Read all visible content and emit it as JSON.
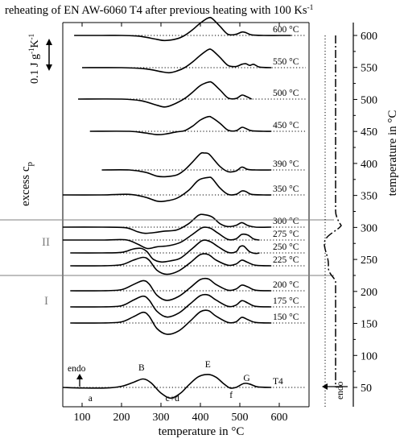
{
  "chart_data": {
    "type": "line",
    "title": "reheating of EN AW-6060 T4 after previous heating with 100 Ks",
    "title_superscript": "-1",
    "xlabel": "temperature in °C",
    "ylabel_left": "excess c",
    "ylabel_left_subscript": "p",
    "ylabel_right": "temperature in °C",
    "scale_bar_label": "0.1 J g",
    "scale_bar_sup1": "-1",
    "scale_bar_mid": "K",
    "scale_bar_sup2": "-1",
    "xlim": [
      50,
      650
    ],
    "x_ticks": [
      "100",
      "200",
      "300",
      "400",
      "500",
      "600"
    ],
    "right_axis_lim": [
      25,
      625
    ],
    "right_axis_ticks": [
      "50",
      "100",
      "150",
      "200",
      "250",
      "300",
      "350",
      "400",
      "450",
      "500",
      "550",
      "600"
    ],
    "series": [
      {
        "name": "600 °C",
        "baseline": 600,
        "x_start": 80,
        "x_end": 630,
        "x": [
          80,
          150,
          200,
          240,
          260,
          290,
          310,
          340,
          360,
          380,
          400,
          420,
          430,
          450,
          470,
          490,
          505,
          515,
          530,
          560,
          600,
          630
        ],
        "y": [
          0,
          0,
          0,
          -0.05,
          -0.15,
          -0.35,
          -0.45,
          -0.3,
          0,
          0.5,
          1.1,
          1.55,
          1.5,
          0.8,
          0.1,
          0.1,
          0.3,
          0.25,
          0.05,
          0,
          0,
          0
        ]
      },
      {
        "name": "550 °C",
        "baseline": 550,
        "x_start": 100,
        "x_end": 580,
        "x": [
          100,
          200,
          260,
          300,
          320,
          340,
          360,
          380,
          400,
          420,
          430,
          450,
          470,
          490,
          505,
          515,
          525,
          535,
          550,
          580
        ],
        "y": [
          0,
          0,
          -0.1,
          -0.35,
          -0.45,
          -0.3,
          0,
          0.5,
          1.1,
          1.6,
          1.55,
          0.9,
          0.2,
          0.1,
          0.3,
          0.35,
          0.2,
          0.3,
          0.05,
          0
        ]
      },
      {
        "name": "500 °C",
        "baseline": 500,
        "x_start": 90,
        "x_end": 530,
        "x": [
          90,
          200,
          250,
          290,
          310,
          330,
          360,
          380,
          400,
          420,
          430,
          450,
          470,
          490,
          505,
          515,
          530
        ],
        "y": [
          0,
          0,
          -0.15,
          -0.55,
          -0.7,
          -0.5,
          0.05,
          0.6,
          1.2,
          1.5,
          1.45,
          0.8,
          0.1,
          0.05,
          0.35,
          0.25,
          0
        ]
      },
      {
        "name": "450 °C",
        "baseline": 450,
        "x_start": 120,
        "x_end": 580,
        "x": [
          120,
          220,
          260,
          290,
          310,
          340,
          360,
          380,
          400,
          420,
          430,
          450,
          470,
          490,
          505,
          515,
          530,
          560,
          580
        ],
        "y": [
          0,
          0,
          -0.15,
          -0.3,
          -0.25,
          -0.05,
          0.05,
          0.45,
          1.0,
          1.3,
          1.2,
          0.7,
          0.1,
          0.05,
          0.35,
          0.25,
          0.05,
          0,
          0
        ]
      },
      {
        "name": "390 °C",
        "baseline": 390,
        "x_start": 150,
        "x_end": 580,
        "x": [
          150,
          220,
          260,
          290,
          310,
          340,
          360,
          380,
          400,
          410,
          420,
          430,
          450,
          470,
          490,
          505,
          520,
          540,
          580
        ],
        "y": [
          0,
          0,
          -0.2,
          -0.55,
          -0.6,
          -0.45,
          0,
          0.7,
          1.45,
          1.5,
          1.45,
          1.1,
          0.3,
          -0.15,
          -0.1,
          0.25,
          0.05,
          0,
          0
        ]
      },
      {
        "name": "350 °C",
        "baseline": 350,
        "x_start": 50,
        "x_end": 580,
        "x": [
          50,
          150,
          220,
          260,
          290,
          310,
          340,
          370,
          395,
          420,
          430,
          450,
          470,
          490,
          505,
          515,
          530,
          560,
          580
        ],
        "y": [
          0,
          0,
          0.05,
          -0.2,
          -0.55,
          -0.55,
          -0.3,
          0.4,
          1.3,
          1.55,
          1.45,
          0.6,
          0.05,
          0.05,
          0.35,
          0.3,
          0.05,
          0,
          0
        ]
      },
      {
        "name": "300 °C",
        "baseline": 300,
        "x_start": 50,
        "x_end": 580,
        "x": [
          50,
          150,
          210,
          240,
          260,
          290,
          310,
          340,
          370,
          395,
          410,
          430,
          450,
          470,
          490,
          505,
          520,
          540,
          580
        ],
        "y": [
          0,
          0,
          -0.05,
          -0.4,
          -0.55,
          -0.45,
          -0.35,
          -0.25,
          0.3,
          1.05,
          1.1,
          0.9,
          0.3,
          0.05,
          0.15,
          0.4,
          0.15,
          0,
          0
        ]
      },
      {
        "name": "275 °C",
        "baseline": 275,
        "x_start": 50,
        "x_end": 550,
        "x": [
          50,
          150,
          210,
          240,
          265,
          290,
          320,
          350,
          380,
          405,
          425,
          445,
          470,
          490,
          505,
          520,
          535,
          550
        ],
        "y": [
          0,
          0,
          0.02,
          -0.35,
          -0.75,
          -0.6,
          -0.5,
          -0.2,
          0.5,
          1.1,
          1.05,
          0.6,
          0.05,
          0.1,
          0.5,
          0.45,
          0.1,
          0
        ]
      },
      {
        "name": "250 °C",
        "baseline": 250,
        "x_start": 70,
        "x_end": 550,
        "x": [
          70,
          150,
          200,
          230,
          250,
          265,
          280,
          300,
          325,
          350,
          380,
          405,
          425,
          445,
          470,
          490,
          500,
          510,
          525,
          540,
          550
        ],
        "y": [
          0,
          0,
          0.05,
          0.35,
          0.4,
          0.1,
          -0.55,
          -0.8,
          -0.7,
          -0.45,
          0.4,
          1.1,
          1.0,
          0.55,
          0.05,
          0.1,
          0.55,
          0.6,
          0.1,
          -0.05,
          0
        ]
      },
      {
        "name": "225 °C",
        "baseline": 225,
        "x_start": 70,
        "x_end": 580,
        "x": [
          70,
          150,
          200,
          230,
          255,
          270,
          290,
          315,
          345,
          375,
          400,
          420,
          440,
          470,
          490,
          505,
          520,
          540,
          580
        ],
        "y": [
          0,
          0,
          0.1,
          0.5,
          0.75,
          0.5,
          -0.4,
          -0.75,
          -0.45,
          0.3,
          1.0,
          1.0,
          0.5,
          0.05,
          0.15,
          0.5,
          0.3,
          0.05,
          0
        ]
      },
      {
        "name": "200 °C",
        "baseline": 200,
        "x_start": 70,
        "x_end": 580,
        "x": [
          70,
          150,
          200,
          230,
          255,
          270,
          290,
          315,
          345,
          375,
          400,
          420,
          440,
          470,
          490,
          505,
          520,
          540,
          580
        ],
        "y": [
          0,
          0,
          0.1,
          0.55,
          0.9,
          0.6,
          -0.4,
          -0.85,
          -0.5,
          0.3,
          1.0,
          1.05,
          0.55,
          0.05,
          0.15,
          0.5,
          0.35,
          0.05,
          0
        ]
      },
      {
        "name": "175 °C",
        "baseline": 175,
        "x_start": 70,
        "x_end": 580,
        "x": [
          70,
          150,
          200,
          230,
          255,
          270,
          290,
          315,
          345,
          375,
          400,
          420,
          440,
          470,
          490,
          505,
          520,
          540,
          580
        ],
        "y": [
          0,
          0,
          0.1,
          0.6,
          0.95,
          0.6,
          -0.4,
          -0.9,
          -0.55,
          0.3,
          1.0,
          1.05,
          0.6,
          0.05,
          0.15,
          0.55,
          0.35,
          0.05,
          0
        ]
      },
      {
        "name": "150 °C",
        "baseline": 150,
        "x_start": 70,
        "x_end": 580,
        "x": [
          70,
          150,
          200,
          230,
          255,
          270,
          290,
          315,
          345,
          375,
          400,
          420,
          440,
          470,
          490,
          505,
          520,
          540,
          580
        ],
        "y": [
          0,
          0,
          0.1,
          0.55,
          0.95,
          0.6,
          -0.5,
          -1.0,
          -0.7,
          0.2,
          1.0,
          1.1,
          0.6,
          0.05,
          0.1,
          0.5,
          0.3,
          0.05,
          0
        ]
      },
      {
        "name": "T4",
        "baseline": 50,
        "x_start": 50,
        "x_end": 580,
        "x": [
          50,
          100,
          160,
          200,
          230,
          255,
          275,
          300,
          325,
          350,
          370,
          395,
          420,
          440,
          460,
          475,
          490,
          510,
          525,
          545,
          580
        ],
        "y": [
          0,
          -0.05,
          -0.05,
          0.1,
          0.45,
          0.75,
          0.4,
          -0.5,
          -0.95,
          -0.5,
          0.2,
          0.95,
          1.15,
          0.9,
          0.3,
          -0.05,
          0.0,
          0.35,
          0.3,
          0.05,
          0
        ]
      }
    ],
    "group_labels": [
      {
        "text": "II",
        "temp": 250
      },
      {
        "text": "I",
        "temp": 180
      }
    ],
    "divider_temps": [
      312,
      223
    ],
    "peak_labels": [
      {
        "text": "a",
        "x": 120,
        "y": -0.5
      },
      {
        "text": "B",
        "x": 255,
        "y": 1.1
      },
      {
        "text": "c+d",
        "x": 340,
        "y": -0.9
      },
      {
        "text": "E",
        "x": 420,
        "y": 1.5
      },
      {
        "text": "f",
        "x": 480,
        "y": -0.6
      },
      {
        "text": "G",
        "x": 515,
        "y": 0.6
      }
    ],
    "endo_label": "endo",
    "endo_right_label": "endo",
    "thermal_program": {
      "time_fraction": [
        0.0,
        0.35,
        0.52,
        0.6,
        0.78,
        0.92,
        1.0
      ],
      "temp": [
        625,
        315,
        300,
        275,
        250,
        225,
        50
      ]
    }
  }
}
